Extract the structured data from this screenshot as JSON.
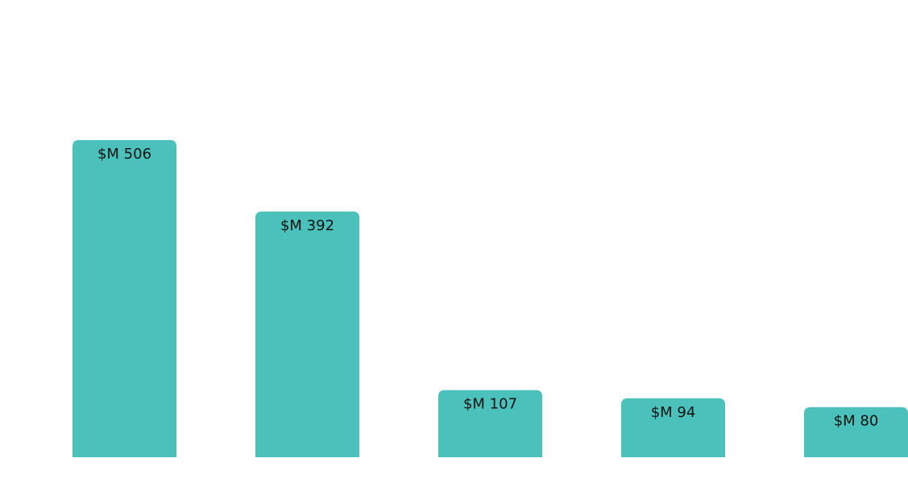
{
  "chart_data": {
    "type": "bar",
    "title": "",
    "xlabel": "",
    "ylabel": "",
    "categories": [
      "",
      "",
      "",
      "",
      ""
    ],
    "values": [
      506,
      392,
      107,
      94,
      80
    ],
    "data_labels": [
      "$M 506",
      "$M 392",
      "$M 107",
      "$M 94",
      "$M 80"
    ],
    "unit": "$M",
    "ylim": [
      0,
      506
    ],
    "grid": false,
    "legend": "none",
    "bar_color": "#4bc1bb"
  }
}
